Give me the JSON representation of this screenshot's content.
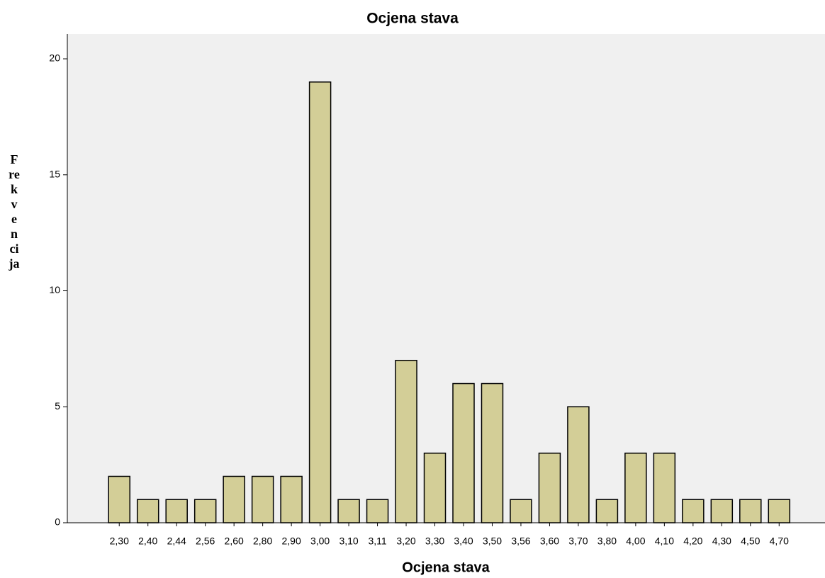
{
  "chart_data": {
    "type": "bar",
    "title": "Ocjena stava",
    "x_label": "Ocjena stava",
    "y_label": "Frekvencija",
    "categories": [
      "2,30",
      "2,40",
      "2,44",
      "2,56",
      "2,60",
      "2,80",
      "2,90",
      "3,00",
      "3,10",
      "3,11",
      "3,20",
      "3,30",
      "3,40",
      "3,50",
      "3,56",
      "3,60",
      "3,70",
      "3,80",
      "4,00",
      "4,10",
      "4,20",
      "4,30",
      "4,50",
      "4,70"
    ],
    "values": [
      2,
      1,
      1,
      1,
      2,
      2,
      2,
      19,
      1,
      1,
      7,
      3,
      6,
      6,
      1,
      3,
      5,
      1,
      3,
      3,
      1,
      1,
      1,
      1
    ],
    "color": "#d3ce97",
    "ylim": [
      0,
      21.07
    ],
    "yticks": [
      0,
      5,
      10,
      15,
      20
    ],
    "grid": false
  }
}
